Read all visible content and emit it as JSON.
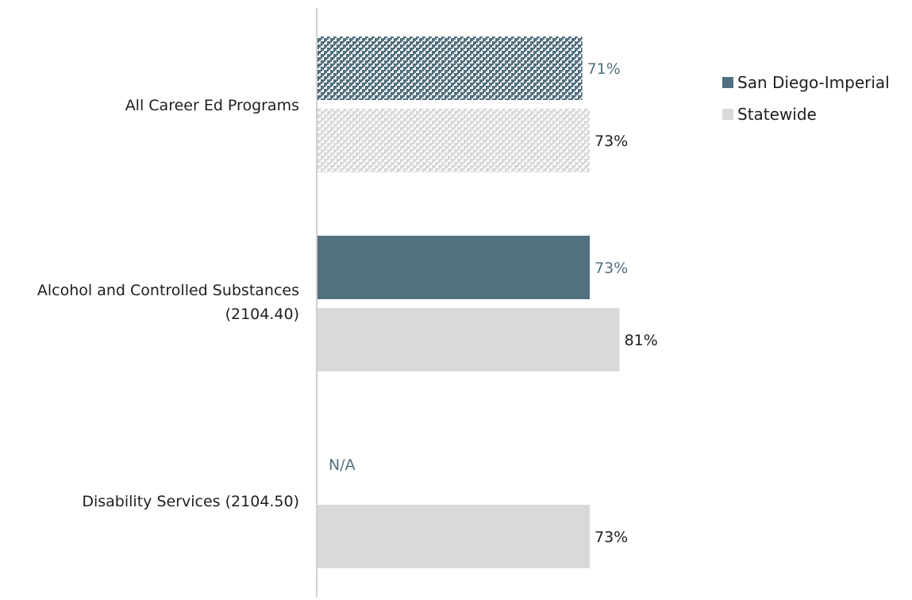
{
  "chart_data": {
    "type": "bar",
    "orientation": "horizontal",
    "categories": [
      "All Career Ed Programs",
      "Alcohol and Controlled Substances (2104.40)",
      "Disability Services (2104.50)"
    ],
    "category_lines": [
      [
        "All Career Ed Programs"
      ],
      [
        "Alcohol and Controlled Substances",
        "(2104.40)"
      ],
      [
        "Disability Services (2104.50)"
      ]
    ],
    "series": [
      {
        "name": "San Diego-Imperial",
        "color": "#52707f",
        "values": [
          71,
          73,
          null
        ],
        "labels": [
          "71%",
          "73%",
          "N/A"
        ]
      },
      {
        "name": "Statewide",
        "color": "#d9d9d9",
        "values": [
          73,
          81,
          73
        ],
        "labels": [
          "73%",
          "81%",
          "73%"
        ]
      }
    ],
    "patterned_category": "All Career Ed Programs",
    "legend_position": "right",
    "grid": false,
    "xlim": [
      0,
      100
    ]
  }
}
